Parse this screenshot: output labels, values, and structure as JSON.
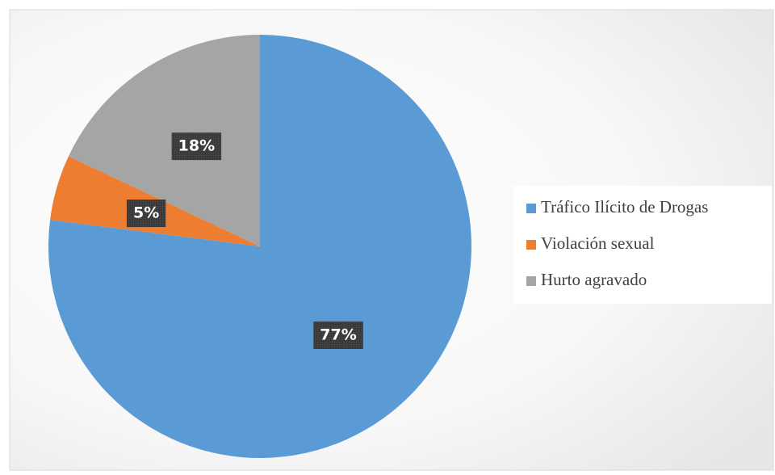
{
  "chart_data": {
    "type": "pie",
    "categories": [
      "Tráfico Ilícito de Drogas",
      "Violación sexual",
      "Hurto agravado"
    ],
    "values": [
      77,
      5,
      18
    ],
    "value_labels": [
      "77%",
      "5%",
      "18%"
    ],
    "colors": [
      "#5b9bd5",
      "#ed7d31",
      "#a5a5a5"
    ],
    "legend": "right"
  }
}
